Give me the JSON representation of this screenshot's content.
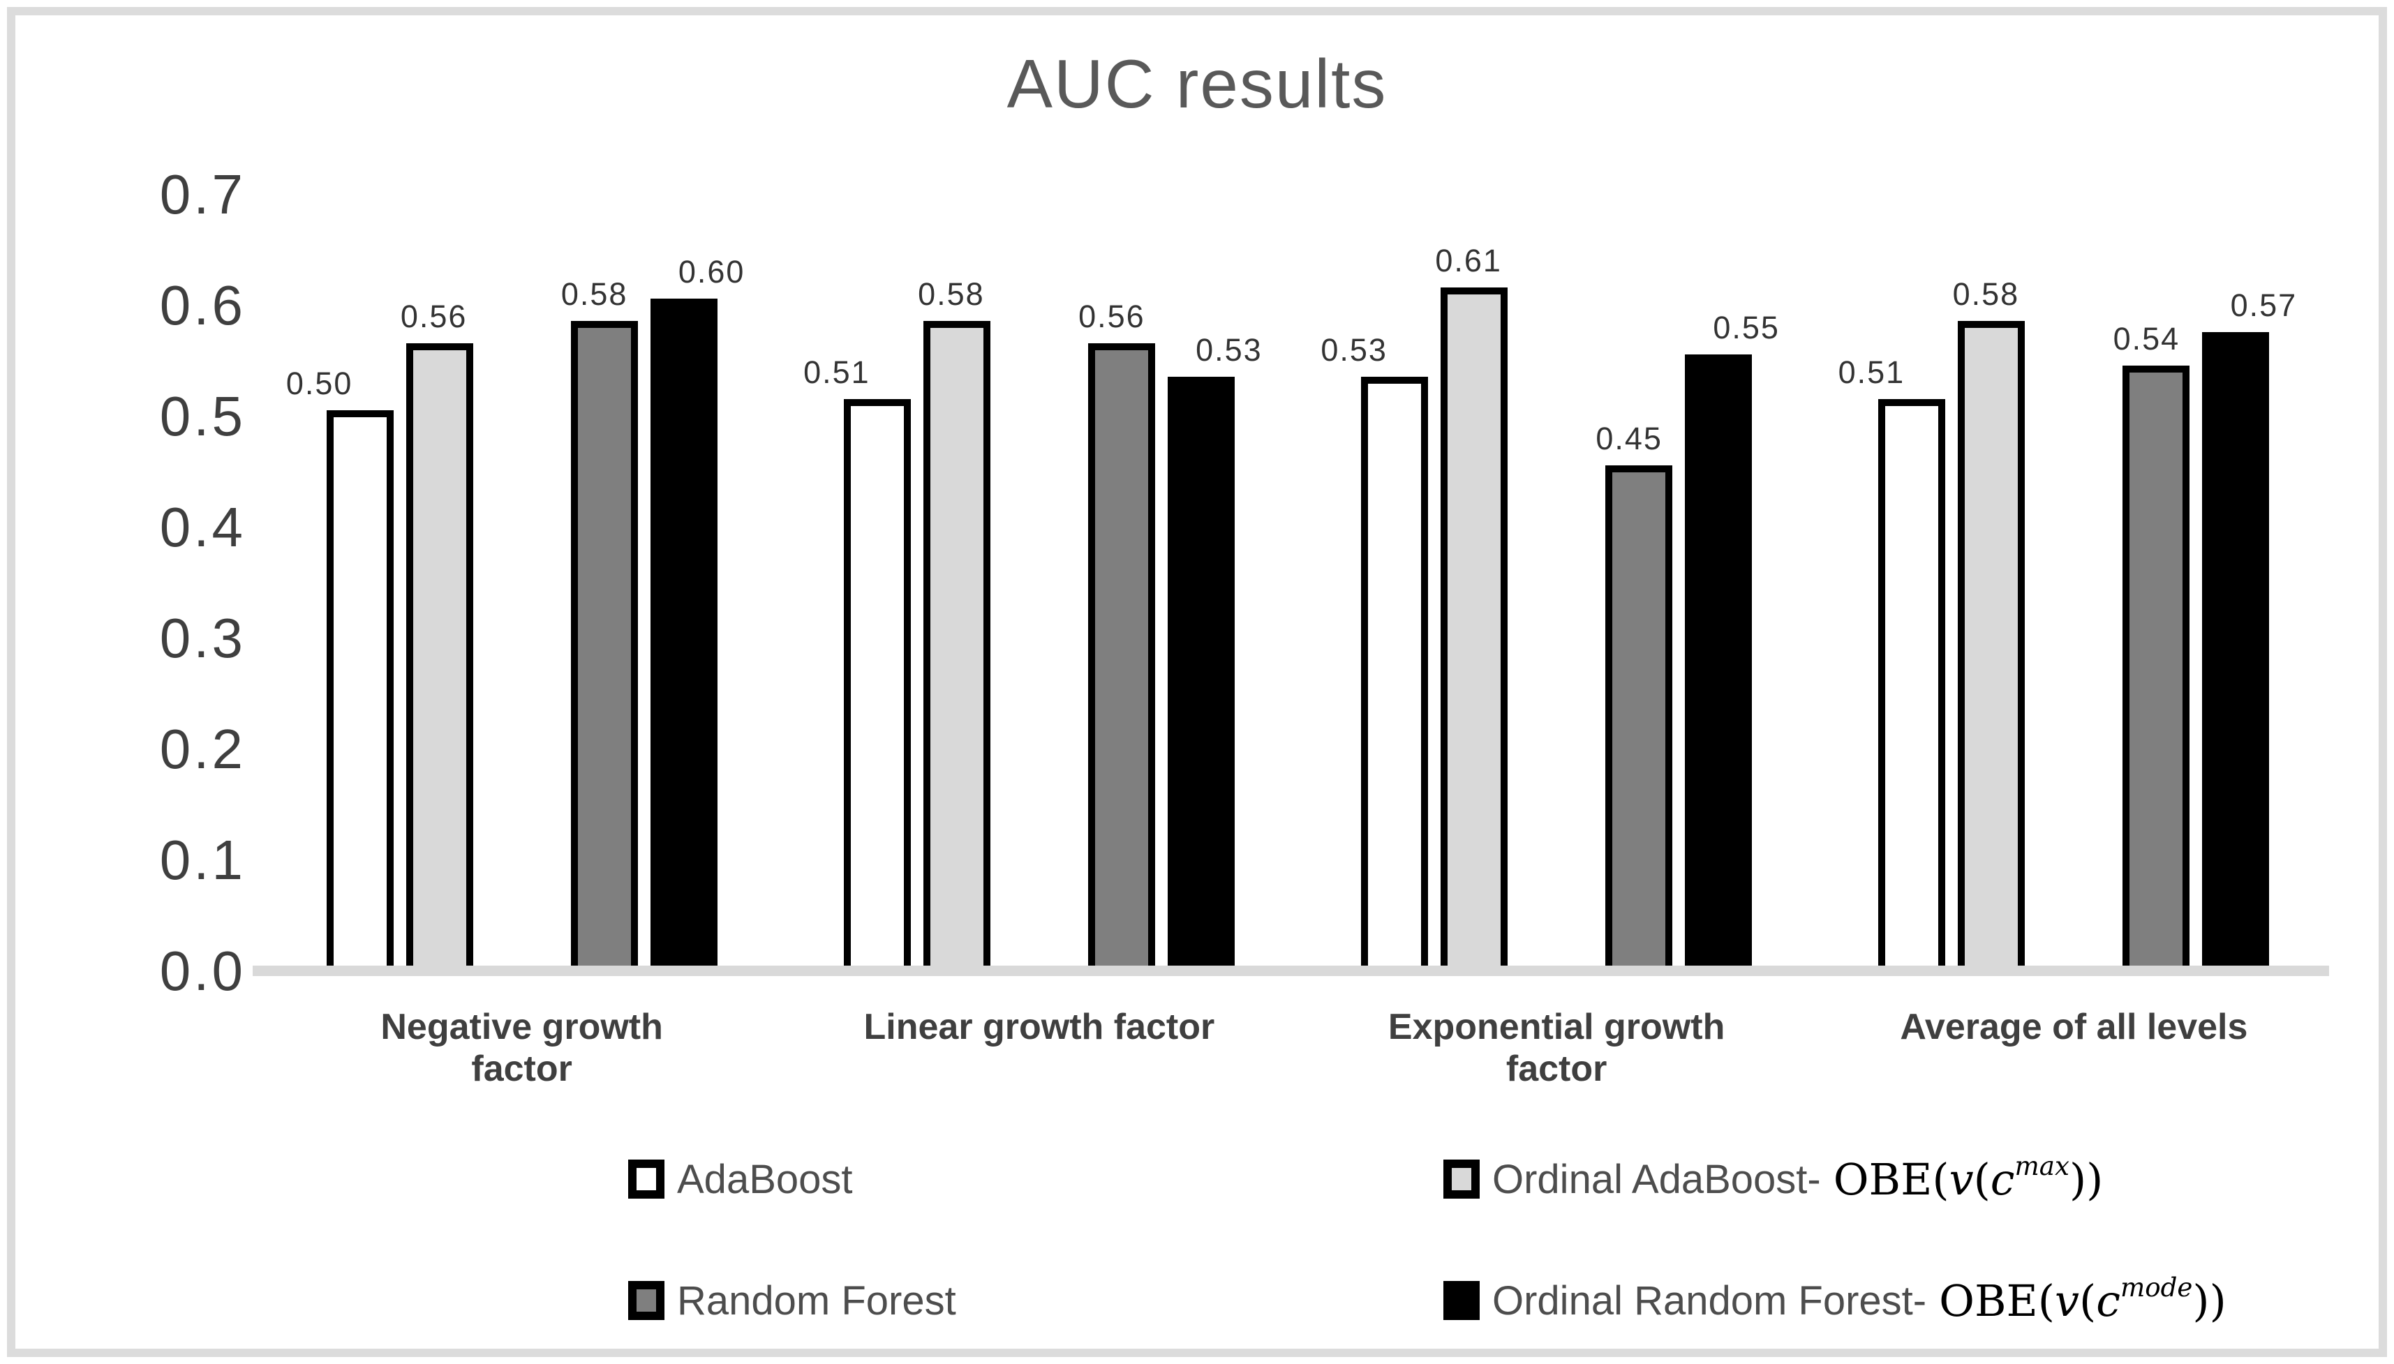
{
  "frame": {
    "border_color": "#dcdcdc",
    "background": "#ffffff"
  },
  "chart_data": {
    "type": "bar",
    "title": "AUC results",
    "categories": [
      "Negative growth factor",
      "Linear growth factor",
      "Exponential growth factor",
      "Average of all levels"
    ],
    "series": [
      {
        "name": "AdaBoost",
        "fill": "#ffffff",
        "border": "#000000",
        "values": [
          0.5,
          0.51,
          0.53,
          0.51
        ]
      },
      {
        "name": "Ordinal AdaBoost- OBE(v(c^max))",
        "fill": "#d9d9d9",
        "border": "#000000",
        "values": [
          0.56,
          0.58,
          0.61,
          0.58
        ]
      },
      {
        "name": "Random Forest",
        "fill": "#7f7f7f",
        "border": "#000000",
        "values": [
          0.58,
          0.56,
          0.45,
          0.54
        ]
      },
      {
        "name": "Ordinal Random Forest- OBE(v(c^mode))",
        "fill": "#000000",
        "border": "#000000",
        "values": [
          0.6,
          0.53,
          0.55,
          0.57
        ]
      }
    ],
    "ylim": [
      0.0,
      0.7
    ],
    "yticks": [
      "0.7",
      "0.6",
      "0.5",
      "0.4",
      "0.3",
      "0.2",
      "0.1",
      "0.0"
    ],
    "grid": false,
    "legend_position": "bottom",
    "axis_line_color": "#d9d9d9",
    "value_label_format": "0.00"
  },
  "legend": {
    "items": [
      {
        "label": "AdaBoost",
        "swatch": "#ffffff",
        "formula": null
      },
      {
        "label": "Ordinal AdaBoost-",
        "swatch": "#d9d9d9",
        "formula": {
          "func": "OBE",
          "outer_var": "v",
          "inner_var": "c",
          "superscript": "max"
        }
      },
      {
        "label": "Random Forest",
        "swatch": "#7f7f7f",
        "formula": null
      },
      {
        "label": "Ordinal Random Forest-",
        "swatch": "#000000",
        "formula": {
          "func": "OBE",
          "outer_var": "v",
          "inner_var": "c",
          "superscript": "mode"
        }
      }
    ]
  }
}
